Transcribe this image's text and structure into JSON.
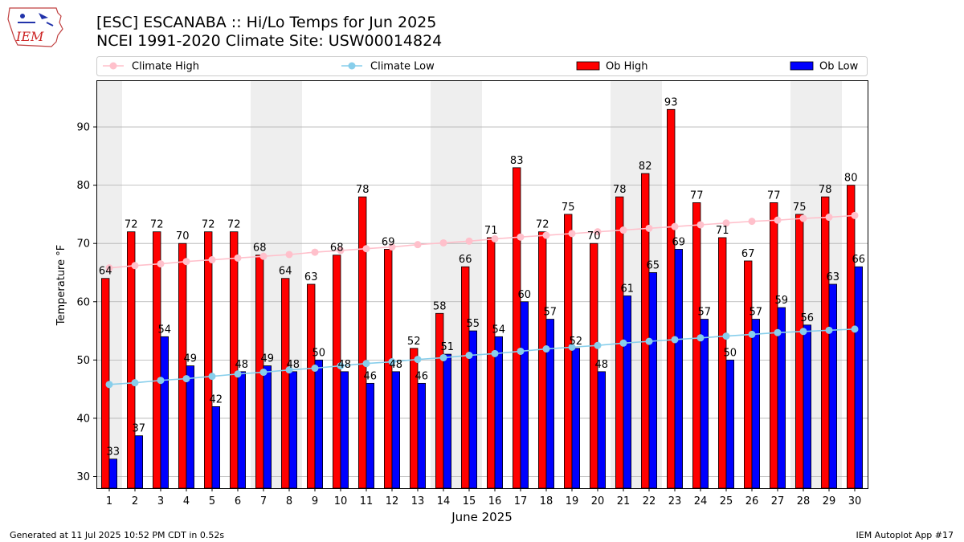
{
  "header": {
    "title_line1": "[ESC] ESCANABA :: Hi/Lo Temps for Jun 2025",
    "title_line2": "NCEI 1991-2020 Climate Site: USW00014824",
    "logo_text": "IEM"
  },
  "footer": {
    "generated": "Generated at 11 Jul 2025 10:52 PM CDT in 0.52s",
    "app": "IEM Autoplot App #17"
  },
  "colors": {
    "ob_high": "#ff0000",
    "ob_low": "#0000ff",
    "climate_high": "#ffc0cb",
    "climate_low": "#87ceeb",
    "weekend_band": "#eeeeee"
  },
  "chart_data": {
    "type": "bar",
    "xlabel": "June 2025",
    "ylabel": "Temperature °F",
    "ylim": [
      28,
      98
    ],
    "yticks": [
      30,
      40,
      50,
      60,
      70,
      80,
      90
    ],
    "grid": "horizontal",
    "legend_placement": "top, above plot",
    "categories": [
      1,
      2,
      3,
      4,
      5,
      6,
      7,
      8,
      9,
      10,
      11,
      12,
      13,
      14,
      15,
      16,
      17,
      18,
      19,
      20,
      21,
      22,
      23,
      24,
      25,
      26,
      27,
      28,
      29,
      30
    ],
    "shaded_days": [
      1,
      7,
      8,
      14,
      15,
      21,
      22,
      28,
      29
    ],
    "series": [
      {
        "name": "Ob High",
        "kind": "bar",
        "values": [
          64,
          72,
          72,
          70,
          72,
          72,
          68,
          64,
          63,
          68,
          78,
          69,
          52,
          58,
          66,
          71,
          83,
          72,
          75,
          70,
          78,
          82,
          93,
          77,
          71,
          67,
          77,
          75,
          78,
          80
        ]
      },
      {
        "name": "Ob Low",
        "kind": "bar",
        "values": [
          33,
          37,
          54,
          49,
          42,
          48,
          49,
          48,
          50,
          48,
          46,
          48,
          46,
          51,
          55,
          54,
          60,
          57,
          52,
          48,
          61,
          65,
          69,
          57,
          50,
          57,
          59,
          56,
          63,
          66
        ]
      },
      {
        "name": "Climate High",
        "kind": "line",
        "values": [
          65.8,
          66.2,
          66.5,
          66.9,
          67.2,
          67.5,
          67.8,
          68.1,
          68.5,
          68.8,
          69.1,
          69.4,
          69.8,
          70.1,
          70.4,
          70.8,
          71.1,
          71.4,
          71.7,
          72.0,
          72.3,
          72.6,
          72.9,
          73.2,
          73.5,
          73.8,
          74.0,
          74.3,
          74.5,
          74.8
        ]
      },
      {
        "name": "Climate Low",
        "kind": "line",
        "values": [
          45.8,
          46.1,
          46.5,
          46.8,
          47.2,
          47.6,
          47.9,
          48.3,
          48.6,
          49.0,
          49.4,
          49.7,
          50.1,
          50.4,
          50.8,
          51.1,
          51.5,
          51.9,
          52.2,
          52.5,
          52.9,
          53.2,
          53.5,
          53.8,
          54.1,
          54.4,
          54.7,
          54.9,
          55.1,
          55.3
        ]
      }
    ]
  }
}
